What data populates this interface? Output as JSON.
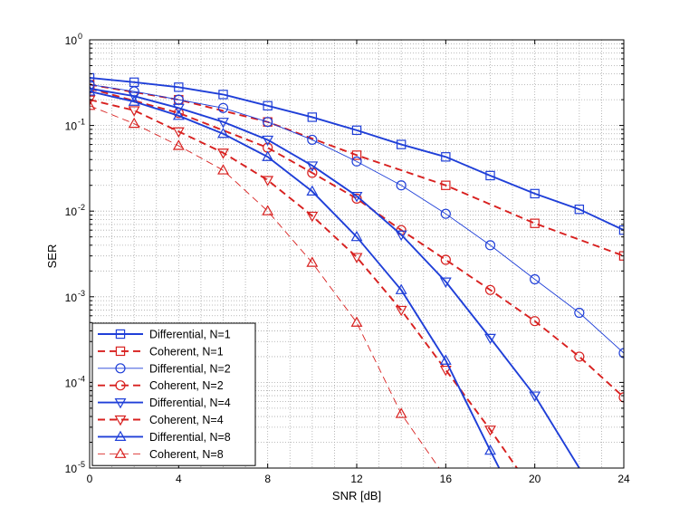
{
  "chart_data": {
    "type": "line",
    "title": "",
    "xlabel": "SNR [dB]",
    "ylabel": "SER",
    "xscale": "linear",
    "yscale": "log",
    "xlim": [
      0,
      24
    ],
    "ylim": [
      1e-05,
      1
    ],
    "xticks": [
      0,
      4,
      8,
      12,
      16,
      20,
      24
    ],
    "yticks": [
      1e-05,
      0.0001,
      0.001,
      0.01,
      0.1,
      1
    ],
    "ytick_labels": [
      {
        "base": "10",
        "exp": "-5"
      },
      {
        "base": "10",
        "exp": "-4"
      },
      {
        "base": "10",
        "exp": "-3"
      },
      {
        "base": "10",
        "exp": "-2"
      },
      {
        "base": "10",
        "exp": "-1"
      },
      {
        "base": "10",
        "exp": "0"
      }
    ],
    "grid": true,
    "legend_position": "bottom-left",
    "series": [
      {
        "name": "Differential, N=1",
        "color": "#1f3fd8",
        "line": "solid",
        "width": "thick",
        "marker": "square",
        "x": [
          0,
          2,
          4,
          6,
          8,
          10,
          12,
          14,
          16,
          18,
          20,
          22,
          24
        ],
        "y": [
          0.36,
          0.32,
          0.28,
          0.23,
          0.17,
          0.125,
          0.088,
          0.06,
          0.043,
          0.026,
          0.016,
          0.0105,
          0.006
        ]
      },
      {
        "name": "Coherent, N=1",
        "color": "#d8201f",
        "line": "dashed",
        "width": "thick",
        "marker": "square",
        "x": [
          0,
          4,
          8,
          12,
          16,
          20,
          24
        ],
        "y": [
          0.3,
          0.2,
          0.11,
          0.045,
          0.02,
          0.0072,
          0.003
        ]
      },
      {
        "name": "Differential, N=2",
        "color": "#1f3fd8",
        "line": "solid",
        "width": "thin",
        "marker": "circle",
        "x": [
          0,
          2,
          4,
          6,
          8,
          10,
          12,
          14,
          16,
          18,
          20,
          22,
          24
        ],
        "y": [
          0.3,
          0.25,
          0.2,
          0.16,
          0.11,
          0.068,
          0.038,
          0.02,
          0.0093,
          0.004,
          0.0016,
          0.00065,
          0.00022
        ]
      },
      {
        "name": "Coherent, N=2",
        "color": "#d8201f",
        "line": "dashed",
        "width": "thick",
        "marker": "circle",
        "x": [
          0,
          4,
          8,
          10,
          12,
          14,
          16,
          18,
          20,
          22,
          24
        ],
        "y": [
          0.27,
          0.14,
          0.055,
          0.028,
          0.014,
          0.006,
          0.0027,
          0.0012,
          0.00052,
          0.0002,
          6.7e-05
        ]
      },
      {
        "name": "Differential, N=4",
        "color": "#1f3fd8",
        "line": "solid",
        "width": "thick",
        "marker": "triangle-down",
        "x": [
          0,
          2,
          4,
          6,
          8,
          10,
          12,
          14,
          16,
          18,
          20,
          22
        ],
        "y": [
          0.27,
          0.22,
          0.16,
          0.11,
          0.068,
          0.034,
          0.015,
          0.0053,
          0.0015,
          0.00033,
          7e-05,
          1e-05
        ]
      },
      {
        "name": "Coherent, N=4",
        "color": "#d8201f",
        "line": "dashed",
        "width": "thick",
        "marker": "triangle-down",
        "x": [
          0,
          2,
          4,
          6,
          8,
          10,
          12,
          14,
          16,
          18,
          19.2
        ],
        "y": [
          0.2,
          0.15,
          0.085,
          0.048,
          0.023,
          0.0088,
          0.0029,
          0.0007,
          0.00014,
          2.8e-05,
          1e-05
        ]
      },
      {
        "name": "Differential, N=8",
        "color": "#1f3fd8",
        "line": "solid",
        "width": "thick",
        "marker": "triangle-up",
        "x": [
          0,
          2,
          4,
          6,
          8,
          10,
          12,
          14,
          16,
          18,
          18.4
        ],
        "y": [
          0.25,
          0.19,
          0.13,
          0.08,
          0.043,
          0.017,
          0.005,
          0.0012,
          0.00018,
          1.6e-05,
          1e-05
        ]
      },
      {
        "name": "Coherent, N=8",
        "color": "#d8201f",
        "line": "dashed",
        "width": "thin",
        "marker": "triangle-up",
        "x": [
          0,
          2,
          4,
          6,
          8,
          10,
          12,
          14,
          15.7
        ],
        "y": [
          0.17,
          0.105,
          0.058,
          0.03,
          0.01,
          0.0025,
          0.0005,
          4.3e-05,
          1e-05
        ]
      }
    ]
  }
}
